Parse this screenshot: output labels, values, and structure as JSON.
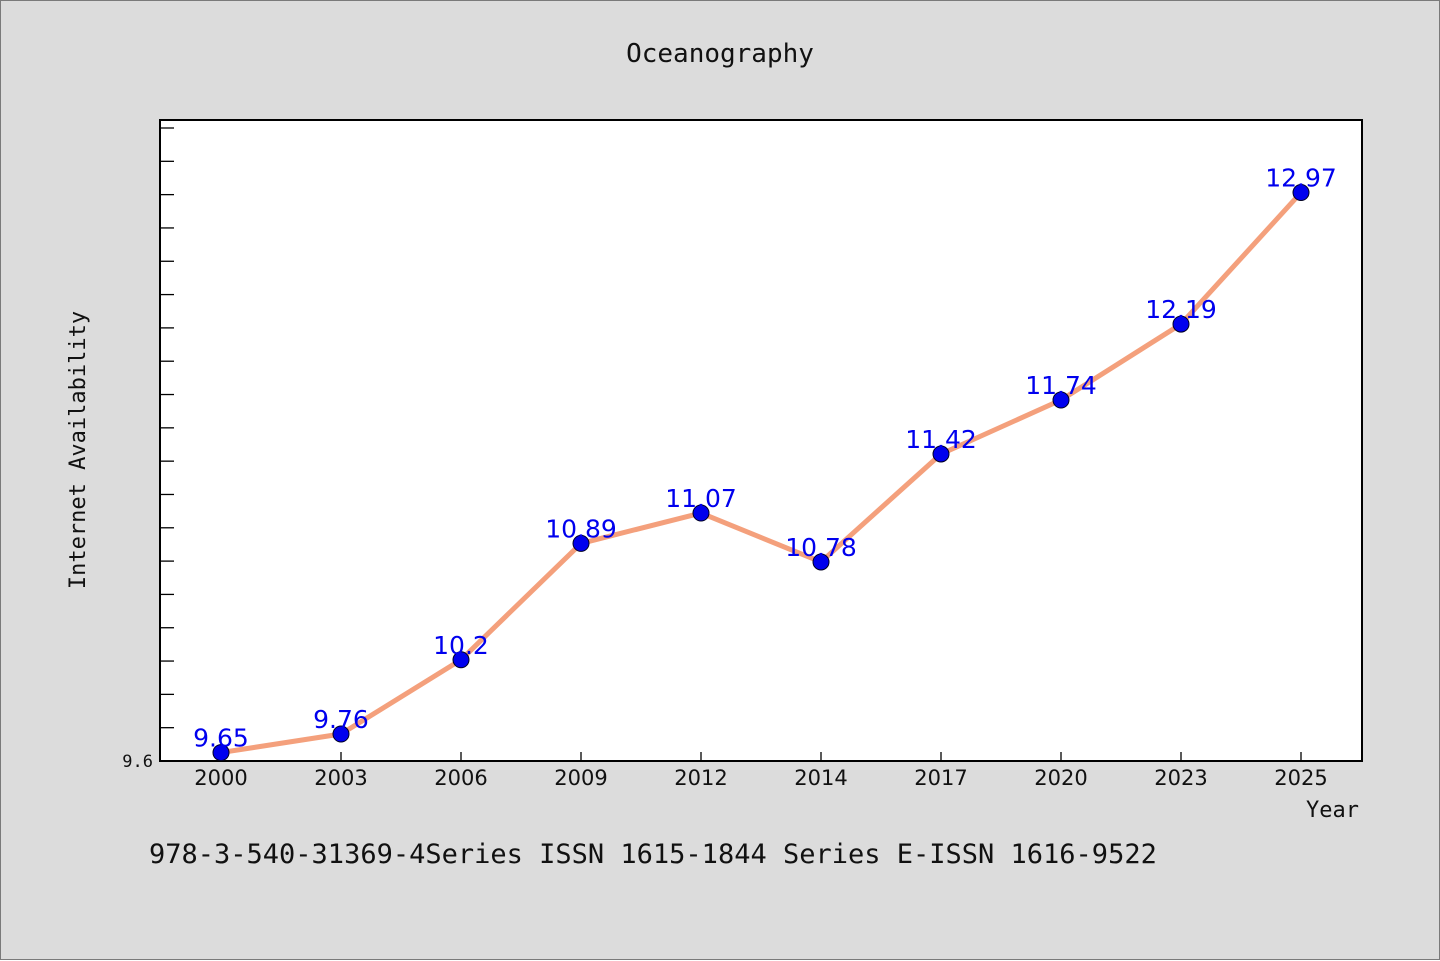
{
  "chart_data": {
    "type": "line",
    "title": "Oceanography",
    "xlabel": "Year",
    "ylabel": "Internet Availability",
    "categories": [
      "2000",
      "2003",
      "2006",
      "2009",
      "2012",
      "2014",
      "2017",
      "2020",
      "2023",
      "2025"
    ],
    "values": [
      9.65,
      9.76,
      10.2,
      10.89,
      11.07,
      10.78,
      11.42,
      11.74,
      12.19,
      12.97
    ],
    "data_labels": [
      "9.65",
      "9.76",
      "10.2",
      "10.89",
      "11.07",
      "10.78",
      "11.42",
      "11.74",
      "12.19",
      "12.97"
    ],
    "y_tick_label": "9.6",
    "ylim": [
      9.6,
      13.4
    ],
    "grid": false,
    "legend": "none",
    "line_color": "#f4a07c",
    "marker_color": "#0000ee",
    "label_color": "#0000ee"
  },
  "footer": {
    "text": "978-3-540-31369-4Series ISSN 1615-1844 Series E-ISSN 1616-9522"
  }
}
